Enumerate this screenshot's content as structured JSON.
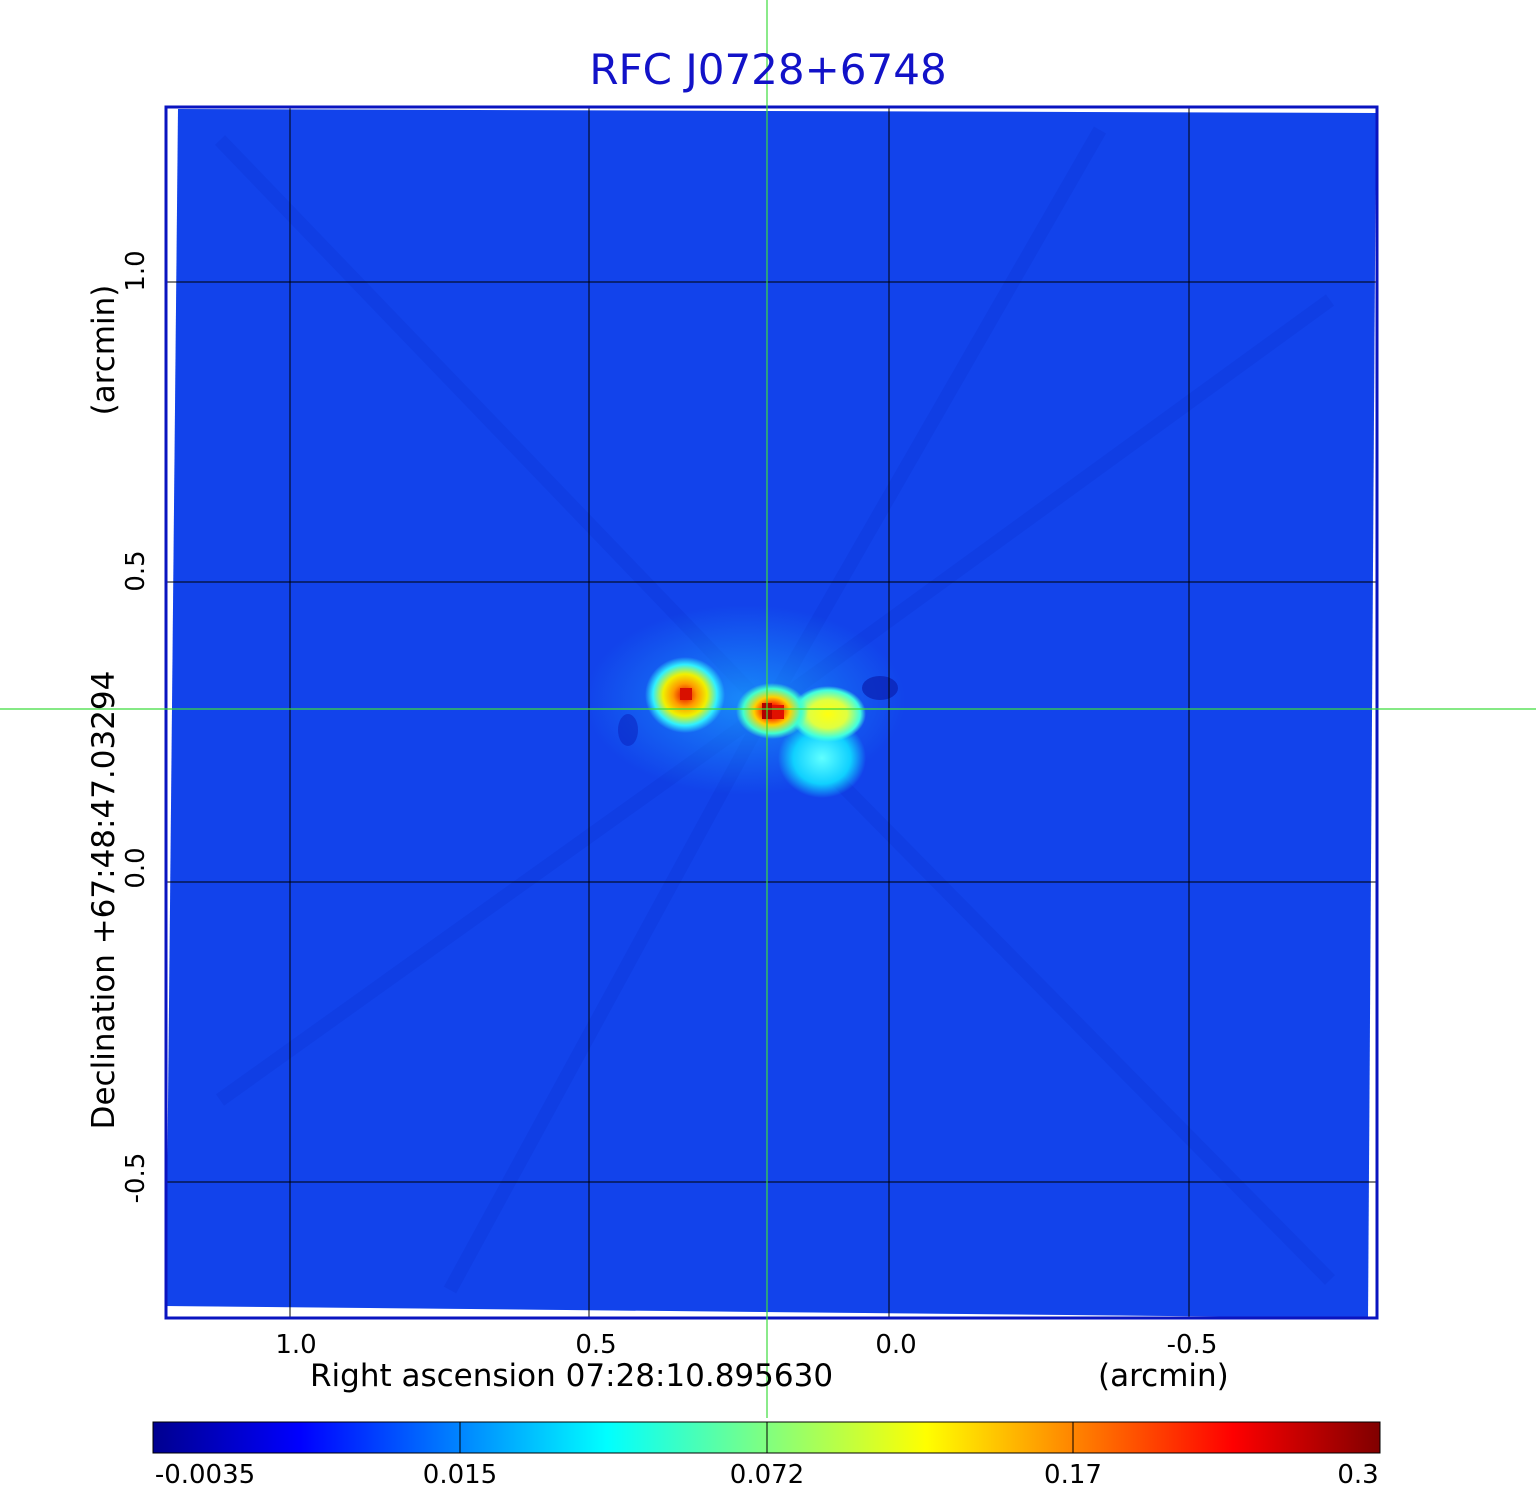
{
  "title": "RFC J0728+6748",
  "x_axis": {
    "label": "Right ascension  07:28:10.895630",
    "unit": "(arcmin)",
    "ticks": [
      "1.0",
      "0.5",
      "0.0",
      "-0.5"
    ]
  },
  "y_axis": {
    "label": "Declination  +67:48:47.03294",
    "unit": "(arcmin)",
    "ticks": [
      "1.0",
      "0.5",
      "0.0",
      "-0.5"
    ]
  },
  "colorbar": {
    "colormap": "jet",
    "ticks": [
      "-0.0035",
      "0.015",
      "0.072",
      "0.17",
      "0.3"
    ]
  },
  "colors": {
    "title": "#1212c8",
    "frame": "#0a14c0",
    "background_map": "#1446f0",
    "crosshair": "#3cdc3c"
  },
  "crosshair": {
    "ra_offset_arcmin": 0.2,
    "dec_offset_arcmin": 0.29
  },
  "sources": [
    {
      "ra_offset_arcmin": 0.33,
      "dec_offset_arcmin": 0.31,
      "peak": 0.25
    },
    {
      "ra_offset_arcmin": 0.2,
      "dec_offset_arcmin": 0.28,
      "peak": 0.3
    },
    {
      "ra_offset_arcmin": 0.1,
      "dec_offset_arcmin": 0.28,
      "peak": 0.12
    },
    {
      "ra_offset_arcmin": 0.12,
      "dec_offset_arcmin": 0.17,
      "peak": 0.05
    }
  ]
}
